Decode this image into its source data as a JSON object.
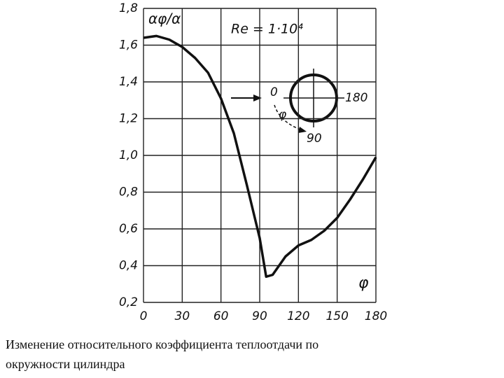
{
  "chart_data": {
    "type": "line",
    "y_label": "αφ/α",
    "x_label": "φ",
    "annotation": "Re = 1·10⁴",
    "diagram_labels": [
      "0",
      "180",
      "90",
      "φ"
    ],
    "x": [
      0,
      10,
      20,
      30,
      40,
      50,
      60,
      70,
      80,
      90,
      95,
      100,
      110,
      120,
      130,
      140,
      150,
      160,
      170,
      180
    ],
    "series": [
      {
        "name": null,
        "color": "#111111",
        "values": [
          1.64,
          1.65,
          1.63,
          1.59,
          1.53,
          1.45,
          1.31,
          1.12,
          0.84,
          0.55,
          0.34,
          0.35,
          0.45,
          0.51,
          0.54,
          0.59,
          0.66,
          0.76,
          0.87,
          0.99
        ]
      }
    ],
    "xlim": [
      0,
      180
    ],
    "xticks": [
      0,
      30,
      60,
      90,
      120,
      150,
      180
    ],
    "ylim": [
      0.2,
      1.8
    ],
    "yticks": [
      {
        "value": 0.2,
        "label": "0,2"
      },
      {
        "value": 0.4,
        "label": "0,4"
      },
      {
        "value": 0.6,
        "label": "0,6"
      },
      {
        "value": 0.8,
        "label": "0,8"
      },
      {
        "value": 1.0,
        "label": "1,0"
      },
      {
        "value": 1.2,
        "label": "1,2"
      },
      {
        "value": 1.4,
        "label": "1,4"
      },
      {
        "value": 1.6,
        "label": "1,6"
      },
      {
        "value": 1.8,
        "label": "1,8"
      }
    ],
    "grid": true,
    "caption": [
      "Изменение относительного коэффициента теплоотдачи по",
      "окружности цилиндра"
    ]
  }
}
